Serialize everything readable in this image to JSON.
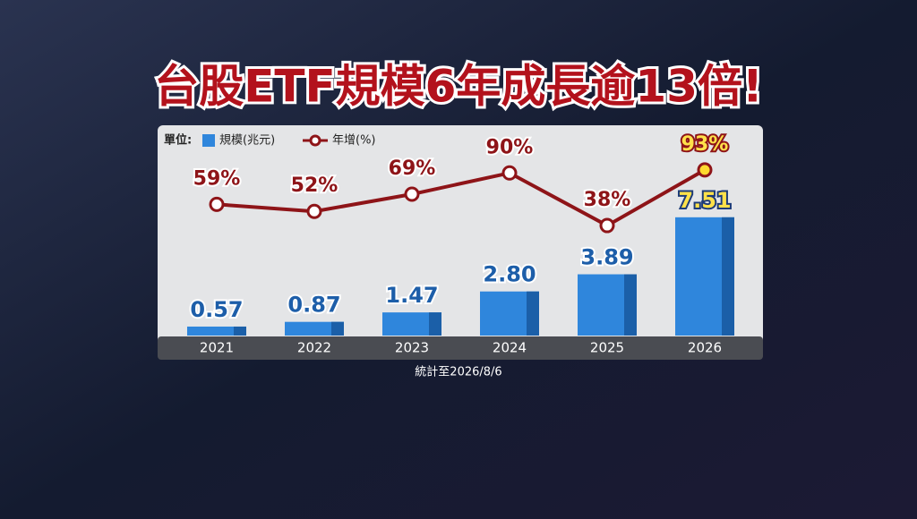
{
  "chart_data": {
    "type": "bar_line",
    "title": "台股ETF規模6年成長逾13倍!",
    "unit_label": "單位:",
    "categories": [
      "2021",
      "2022",
      "2023",
      "2024",
      "2025",
      "2026"
    ],
    "series": [
      {
        "name": "規模(兆元)",
        "color": "#2f86dc",
        "values": [
          0.57,
          0.87,
          1.47,
          2.8,
          3.89,
          7.51
        ],
        "value_labels": [
          "0.57",
          "0.87",
          "1.47",
          "2.80",
          "3.89",
          "7.51"
        ]
      },
      {
        "name": "年增(%)",
        "color": "#8e1418",
        "values": [
          59,
          52,
          69,
          90,
          38,
          93
        ],
        "value_labels": [
          "59%",
          "52%",
          "69%",
          "90%",
          "38%",
          "93%"
        ]
      }
    ],
    "footnote": "統計至2026/8/6"
  }
}
